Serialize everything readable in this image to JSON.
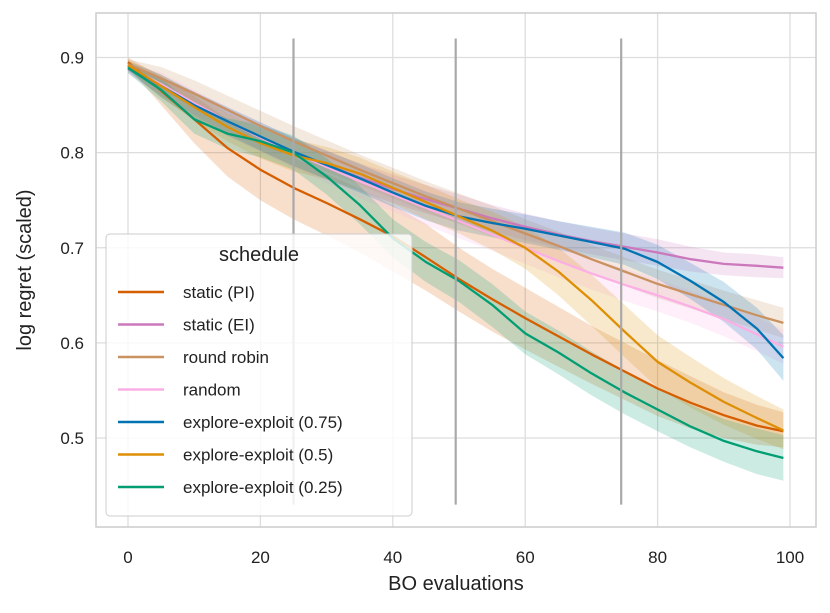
{
  "chart_data": {
    "type": "line",
    "title": "",
    "xlabel": "BO evaluations",
    "ylabel": "log regret (scaled)",
    "xlim": [
      -5,
      103
    ],
    "ylim": [
      0.405,
      0.935
    ],
    "xticks": [
      0,
      20,
      40,
      60,
      80,
      100
    ],
    "xtick_labels": [
      "0",
      "20",
      "40",
      "60",
      "80",
      "100"
    ],
    "yticks": [
      0.5,
      0.6,
      0.7,
      0.8,
      0.9
    ],
    "ytick_labels": [
      "0.5",
      "0.6",
      "0.7",
      "0.8",
      "0.9"
    ],
    "grid": true,
    "legend": {
      "title": "schedule",
      "placement": "lower-left"
    },
    "vertical_markers": [
      {
        "x": 25,
        "y_from": 0.43,
        "y_to": 0.92,
        "color": "#a9a9a9"
      },
      {
        "x": 49.5,
        "y_from": 0.43,
        "y_to": 0.92,
        "color": "#a9a9a9"
      },
      {
        "x": 74.5,
        "y_from": 0.43,
        "y_to": 0.92,
        "color": "#a9a9a9"
      }
    ],
    "series": [
      {
        "name": "static (PI)",
        "color": "#d55e00",
        "x": [
          0,
          5,
          10,
          15,
          20,
          25,
          30,
          35,
          40,
          45,
          50,
          55,
          60,
          65,
          70,
          75,
          80,
          85,
          90,
          95,
          99
        ],
        "y": [
          0.895,
          0.865,
          0.835,
          0.805,
          0.782,
          0.763,
          0.747,
          0.73,
          0.712,
          0.69,
          0.667,
          0.646,
          0.626,
          0.607,
          0.588,
          0.57,
          0.552,
          0.537,
          0.524,
          0.513,
          0.507
        ],
        "lower": [
          0.89,
          0.85,
          0.81,
          0.775,
          0.75,
          0.73,
          0.713,
          0.695,
          0.675,
          0.655,
          0.633,
          0.612,
          0.593,
          0.575,
          0.557,
          0.54,
          0.523,
          0.51,
          0.5,
          0.493,
          0.49
        ],
        "upper": [
          0.9,
          0.88,
          0.86,
          0.835,
          0.812,
          0.795,
          0.778,
          0.762,
          0.745,
          0.725,
          0.7,
          0.678,
          0.658,
          0.638,
          0.618,
          0.6,
          0.582,
          0.565,
          0.548,
          0.535,
          0.527
        ]
      },
      {
        "name": "static (EI)",
        "color": "#cc78bc",
        "x": [
          0,
          5,
          10,
          15,
          20,
          25,
          30,
          35,
          40,
          45,
          50,
          55,
          60,
          65,
          70,
          75,
          80,
          85,
          90,
          95,
          99
        ],
        "y": [
          0.888,
          0.87,
          0.852,
          0.833,
          0.816,
          0.8,
          0.787,
          0.774,
          0.762,
          0.751,
          0.741,
          0.731,
          0.722,
          0.714,
          0.707,
          0.701,
          0.695,
          0.688,
          0.683,
          0.681,
          0.679
        ],
        "lower": [
          0.883,
          0.86,
          0.84,
          0.82,
          0.802,
          0.785,
          0.772,
          0.759,
          0.747,
          0.736,
          0.726,
          0.717,
          0.708,
          0.7,
          0.693,
          0.687,
          0.681,
          0.675,
          0.671,
          0.669,
          0.668
        ],
        "upper": [
          0.893,
          0.88,
          0.864,
          0.846,
          0.83,
          0.815,
          0.802,
          0.789,
          0.777,
          0.766,
          0.756,
          0.745,
          0.736,
          0.728,
          0.721,
          0.715,
          0.709,
          0.701,
          0.695,
          0.693,
          0.69
        ]
      },
      {
        "name": "round robin",
        "color": "#ca9161",
        "x": [
          0,
          5,
          10,
          15,
          20,
          25,
          30,
          35,
          40,
          45,
          50,
          55,
          60,
          65,
          70,
          75,
          80,
          85,
          90,
          95,
          99
        ],
        "y": [
          0.893,
          0.878,
          0.862,
          0.845,
          0.828,
          0.812,
          0.797,
          0.782,
          0.768,
          0.754,
          0.741,
          0.728,
          0.715,
          0.702,
          0.688,
          0.675,
          0.662,
          0.651,
          0.64,
          0.629,
          0.621
        ],
        "lower": [
          0.888,
          0.866,
          0.848,
          0.83,
          0.812,
          0.796,
          0.78,
          0.766,
          0.752,
          0.738,
          0.725,
          0.712,
          0.7,
          0.687,
          0.673,
          0.66,
          0.647,
          0.636,
          0.625,
          0.614,
          0.605
        ],
        "upper": [
          0.898,
          0.89,
          0.876,
          0.86,
          0.844,
          0.828,
          0.813,
          0.798,
          0.784,
          0.77,
          0.757,
          0.744,
          0.73,
          0.717,
          0.703,
          0.69,
          0.677,
          0.666,
          0.655,
          0.645,
          0.637
        ]
      },
      {
        "name": "random",
        "color": "#fbafe4",
        "x": [
          0,
          5,
          10,
          15,
          20,
          25,
          30,
          35,
          40,
          45,
          50,
          55,
          60,
          65,
          70,
          75,
          80,
          85,
          90,
          95,
          99
        ],
        "y": [
          0.89,
          0.872,
          0.852,
          0.833,
          0.816,
          0.8,
          0.785,
          0.77,
          0.756,
          0.742,
          0.728,
          0.714,
          0.7,
          0.686,
          0.673,
          0.661,
          0.65,
          0.638,
          0.625,
          0.609,
          0.596
        ],
        "lower": [
          0.885,
          0.86,
          0.838,
          0.818,
          0.8,
          0.784,
          0.768,
          0.752,
          0.738,
          0.724,
          0.71,
          0.697,
          0.683,
          0.669,
          0.656,
          0.644,
          0.633,
          0.621,
          0.607,
          0.591,
          0.578
        ],
        "upper": [
          0.895,
          0.884,
          0.866,
          0.848,
          0.832,
          0.816,
          0.802,
          0.788,
          0.774,
          0.76,
          0.746,
          0.731,
          0.717,
          0.703,
          0.69,
          0.678,
          0.667,
          0.655,
          0.643,
          0.627,
          0.614
        ]
      },
      {
        "name": "explore-exploit (0.75)",
        "color": "#0173b2",
        "x": [
          0,
          5,
          10,
          15,
          20,
          25,
          30,
          35,
          40,
          45,
          50,
          55,
          60,
          65,
          70,
          75,
          80,
          85,
          90,
          95,
          99
        ],
        "y": [
          0.891,
          0.87,
          0.85,
          0.833,
          0.817,
          0.801,
          0.787,
          0.773,
          0.758,
          0.744,
          0.733,
          0.726,
          0.72,
          0.713,
          0.706,
          0.699,
          0.685,
          0.665,
          0.643,
          0.615,
          0.584
        ],
        "lower": [
          0.886,
          0.858,
          0.836,
          0.818,
          0.802,
          0.786,
          0.772,
          0.758,
          0.743,
          0.729,
          0.718,
          0.711,
          0.705,
          0.698,
          0.69,
          0.682,
          0.667,
          0.646,
          0.622,
          0.593,
          0.56
        ],
        "upper": [
          0.896,
          0.882,
          0.864,
          0.848,
          0.832,
          0.816,
          0.802,
          0.788,
          0.773,
          0.759,
          0.748,
          0.741,
          0.735,
          0.728,
          0.722,
          0.716,
          0.703,
          0.684,
          0.664,
          0.637,
          0.608
        ]
      },
      {
        "name": "explore-exploit (0.5)",
        "color": "#de8f05",
        "x": [
          0,
          5,
          10,
          15,
          20,
          25,
          30,
          35,
          40,
          45,
          50,
          55,
          60,
          65,
          70,
          75,
          80,
          85,
          90,
          95,
          99
        ],
        "y": [
          0.892,
          0.87,
          0.848,
          0.827,
          0.81,
          0.797,
          0.789,
          0.778,
          0.763,
          0.748,
          0.733,
          0.718,
          0.7,
          0.675,
          0.645,
          0.612,
          0.58,
          0.558,
          0.538,
          0.521,
          0.508
        ],
        "lower": [
          0.887,
          0.858,
          0.834,
          0.812,
          0.794,
          0.78,
          0.772,
          0.761,
          0.746,
          0.73,
          0.715,
          0.698,
          0.678,
          0.65,
          0.618,
          0.585,
          0.553,
          0.532,
          0.514,
          0.499,
          0.488
        ],
        "upper": [
          0.897,
          0.882,
          0.862,
          0.842,
          0.826,
          0.814,
          0.806,
          0.795,
          0.78,
          0.766,
          0.751,
          0.738,
          0.722,
          0.7,
          0.672,
          0.64,
          0.608,
          0.585,
          0.563,
          0.544,
          0.53
        ]
      },
      {
        "name": "explore-exploit (0.25)",
        "color": "#029e73",
        "x": [
          0,
          5,
          10,
          15,
          20,
          25,
          30,
          35,
          40,
          45,
          50,
          55,
          60,
          65,
          70,
          75,
          80,
          85,
          90,
          95,
          99
        ],
        "y": [
          0.889,
          0.866,
          0.835,
          0.82,
          0.812,
          0.8,
          0.775,
          0.745,
          0.71,
          0.685,
          0.665,
          0.64,
          0.61,
          0.59,
          0.568,
          0.548,
          0.53,
          0.512,
          0.497,
          0.486,
          0.479
        ],
        "lower": [
          0.884,
          0.854,
          0.82,
          0.804,
          0.795,
          0.782,
          0.756,
          0.725,
          0.69,
          0.664,
          0.643,
          0.617,
          0.588,
          0.567,
          0.545,
          0.525,
          0.507,
          0.49,
          0.475,
          0.462,
          0.455
        ],
        "upper": [
          0.894,
          0.878,
          0.85,
          0.836,
          0.829,
          0.818,
          0.794,
          0.765,
          0.73,
          0.706,
          0.687,
          0.662,
          0.633,
          0.613,
          0.591,
          0.571,
          0.553,
          0.535,
          0.52,
          0.51,
          0.503
        ]
      }
    ]
  }
}
